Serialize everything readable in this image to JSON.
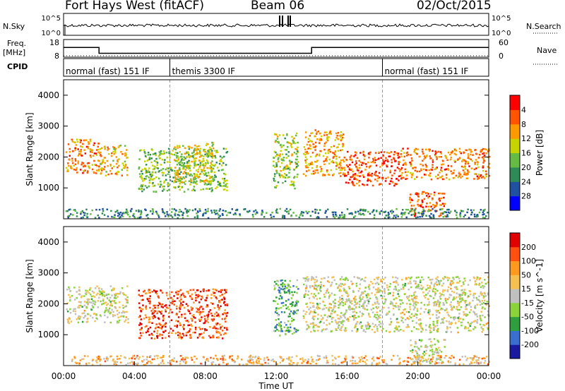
{
  "header": {
    "title": "Fort Hays West (fitACF)",
    "beam": "Beam 06",
    "date": "02/Oct/2015"
  },
  "noise_panel": {
    "left_label": "N.Sky",
    "right_label": "N.Search",
    "left_ticks": [
      "10^5",
      "10^0"
    ],
    "right_ticks": [
      "10^5",
      "10^0"
    ]
  },
  "freq_panel": {
    "left_label_top": "Freq.",
    "left_label_bottom": "[MHz]",
    "right_label": "Nave",
    "left_ticks": [
      "18",
      "8"
    ],
    "right_ticks": [
      "60",
      "0"
    ],
    "freq_values": [
      {
        "t": 0.0,
        "v": 13.5
      },
      {
        "t": 2.0,
        "v": 13.5
      },
      {
        "t": 2.0,
        "v": 10.2
      },
      {
        "t": 14.0,
        "v": 10.2
      },
      {
        "t": 14.0,
        "v": 13.5
      },
      {
        "t": 24.0,
        "v": 13.5
      }
    ]
  },
  "cpid": {
    "label": "CPID",
    "segments": [
      {
        "start": 0,
        "end": 6,
        "text": "normal (fast) 151 IF"
      },
      {
        "start": 6,
        "end": 18,
        "text": "themis 3300 IF"
      },
      {
        "start": 18,
        "end": 24,
        "text": "normal (fast) 151 IF"
      }
    ]
  },
  "chart_data": [
    {
      "type": "heatmap",
      "title": "Power",
      "ylabel": "Slant Range [km]",
      "xlabel": "",
      "xlim": [
        0,
        24
      ],
      "ylim": [
        0,
        4500
      ],
      "yticks": [
        "1000",
        "2000",
        "3000",
        "4000"
      ],
      "colorbar_label": "Power [dB]",
      "colorbar_ticks": [
        "4",
        "8",
        "12",
        "16",
        "20",
        "24",
        "28"
      ],
      "colorbar_colors": [
        "#0000ff",
        "#2050a0",
        "#2e8b57",
        "#66bb44",
        "#c8d400",
        "#ff9900",
        "#ff5500",
        "#ff0000"
      ],
      "echo_bands": [
        {
          "t0": 0.1,
          "t1": 2.0,
          "r0": 1500,
          "r1": 2600,
          "level": 0.75
        },
        {
          "t0": 2.0,
          "t1": 3.6,
          "r0": 1400,
          "r1": 2400,
          "level": 0.65
        },
        {
          "t0": 4.2,
          "t1": 9.2,
          "r0": 900,
          "r1": 2300,
          "level": 0.45
        },
        {
          "t0": 6.2,
          "t1": 8.4,
          "r0": 1200,
          "r1": 2500,
          "level": 0.55
        },
        {
          "t0": 11.8,
          "t1": 13.2,
          "r0": 1000,
          "r1": 2800,
          "level": 0.5
        },
        {
          "t0": 13.5,
          "t1": 15.8,
          "r0": 1400,
          "r1": 2900,
          "level": 0.7
        },
        {
          "t0": 15.8,
          "t1": 19.0,
          "r0": 1100,
          "r1": 2200,
          "level": 0.85
        },
        {
          "t0": 19.0,
          "t1": 24.0,
          "r0": 1300,
          "r1": 2300,
          "level": 0.75
        },
        {
          "t0": 19.5,
          "t1": 21.5,
          "r0": 100,
          "r1": 900,
          "level": 0.8
        },
        {
          "t0": 0.0,
          "t1": 24.0,
          "r0": 50,
          "r1": 350,
          "level": 0.3
        }
      ]
    },
    {
      "type": "heatmap",
      "title": "Velocity",
      "ylabel": "Slant Range [km]",
      "xlabel": "Time UT",
      "xlim": [
        0,
        24
      ],
      "ylim": [
        0,
        4500
      ],
      "yticks": [
        "1000",
        "2000",
        "3000",
        "4000"
      ],
      "xticks": [
        "00:00",
        "04:00",
        "08:00",
        "12:00",
        "16:00",
        "20:00",
        "00:00"
      ],
      "colorbar_label": "Velocity [m s^-1]",
      "colorbar_ticks": [
        "200",
        "100",
        "50",
        "15",
        "-15",
        "-50",
        "-100",
        "-200"
      ],
      "colorbar_colors": [
        "#1a1aa0",
        "#3a6fd0",
        "#2e9e3e",
        "#8ad43a",
        "#c0c0c0",
        "#f5c050",
        "#ff9a20",
        "#ff5010",
        "#e00000"
      ],
      "echo_bands": [
        {
          "t0": 0.1,
          "t1": 3.6,
          "r0": 1400,
          "r1": 2600,
          "level": 0.5
        },
        {
          "t0": 4.2,
          "t1": 9.2,
          "r0": 900,
          "r1": 2500,
          "level": 0.85
        },
        {
          "t0": 11.8,
          "t1": 13.2,
          "r0": 1000,
          "r1": 2800,
          "level": 0.3
        },
        {
          "t0": 13.5,
          "t1": 24.0,
          "r0": 1100,
          "r1": 2900,
          "level": 0.5
        },
        {
          "t0": 19.5,
          "t1": 21.5,
          "r0": 100,
          "r1": 900,
          "level": 0.5
        },
        {
          "t0": 0.0,
          "t1": 24.0,
          "r0": 50,
          "r1": 350,
          "level": 0.65
        }
      ]
    }
  ]
}
